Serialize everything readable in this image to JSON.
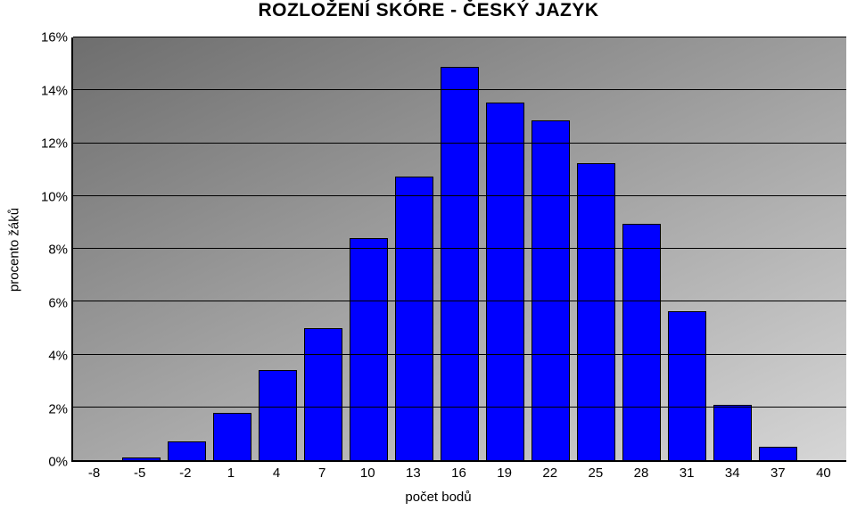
{
  "chart": {
    "type": "bar",
    "title": "ROZLOŽENÍ SKÓRE - ČESKÝ JAZYK",
    "title_fontsize": 21,
    "title_fontweight": 700,
    "title_color": "#000000",
    "xlabel": "počet bodů",
    "ylabel": "procento žáků",
    "label_fontsize": 15,
    "tick_fontsize": 15,
    "y": {
      "min": 0,
      "max": 16,
      "step": 2,
      "ticks": [
        0,
        2,
        4,
        6,
        8,
        10,
        12,
        14,
        16
      ],
      "tick_labels": [
        "0%",
        "2%",
        "4%",
        "6%",
        "8%",
        "10%",
        "12%",
        "14%",
        "16%"
      ],
      "grid": true,
      "grid_color": "#000000"
    },
    "x": {
      "categories_numeric": [
        -8,
        -5,
        -2,
        1,
        4,
        7,
        10,
        13,
        16,
        19,
        22,
        25,
        28,
        31,
        34,
        37,
        40
      ],
      "tick_labels": [
        "-8",
        "-5",
        "-2",
        "1",
        "4",
        "7",
        "10",
        "13",
        "16",
        "19",
        "22",
        "25",
        "28",
        "31",
        "34",
        "37",
        "40"
      ]
    },
    "values": [
      0,
      0.1,
      0.7,
      1.8,
      3.4,
      5.0,
      8.4,
      10.75,
      14.9,
      13.55,
      12.85,
      11.25,
      8.95,
      5.65,
      2.1,
      0.5,
      0
    ],
    "bar_color": "#0000ff",
    "bar_border_color": "#000000",
    "bar_width_ratio": 0.85,
    "background_gradient": {
      "from": "#6e6e6e",
      "to": "#d6d6d6",
      "angle_deg": 155
    },
    "axis_color": "#000000",
    "axis_width": 2
  }
}
